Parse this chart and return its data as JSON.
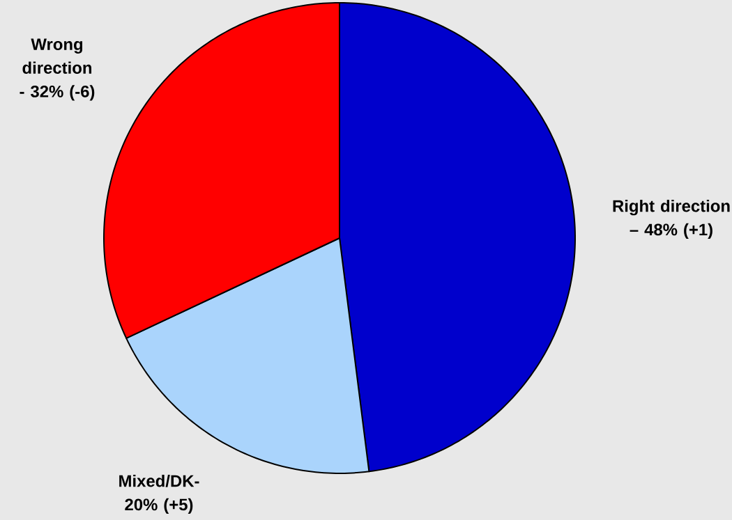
{
  "chart_data": {
    "type": "pie",
    "categories": [
      "Right direction – 48% (+1)",
      "Mixed/DK- 20% (+5)",
      "Wrong direction - 32% (-6)"
    ],
    "values": [
      48,
      20,
      32
    ],
    "colors": [
      "#0000cc",
      "#aad4fc",
      "#ff0000"
    ]
  }
}
